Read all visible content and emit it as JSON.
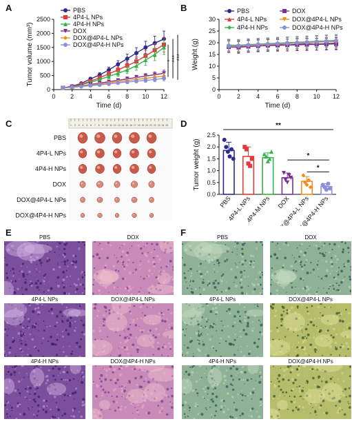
{
  "figure": {
    "panel_labels": [
      "A",
      "B",
      "C",
      "D",
      "E",
      "F"
    ]
  },
  "colors": {
    "PBS": "#2a2a8f",
    "4P4-L NPs": "#e23a3a",
    "4P4-H NPs": "#33b34a",
    "DOX": "#7a2f9a",
    "DOX@4P4-L NPs": "#f28c1b",
    "DOX@4P4-H NPs": "#8a8fd6"
  },
  "chart_data": [
    {
      "type": "line",
      "panel": "A",
      "xlabel": "Time (d)",
      "ylabel": "Tumor volume (mm³)",
      "xlim": [
        0,
        12
      ],
      "ylim": [
        0,
        2500
      ],
      "xticks": [
        "0",
        "2",
        "4",
        "6",
        "8",
        "10",
        "12"
      ],
      "yticks": [
        "0",
        "500",
        "1000",
        "1500",
        "2000",
        "2500"
      ],
      "x": [
        1,
        2,
        3,
        4,
        5,
        6,
        7,
        8,
        9,
        10,
        11,
        12
      ],
      "legend": [
        "PBS",
        "4P4-L NPs",
        "4P4-H NPs",
        "DOX",
        "DOX@4P4-L NPs",
        "DOX@4P4-H NPs"
      ],
      "significance": [
        "*",
        "***",
        "***"
      ],
      "series": [
        {
          "name": "PBS",
          "values": [
            60,
            120,
            220,
            380,
            520,
            700,
            900,
            1100,
            1300,
            1500,
            1650,
            1800
          ],
          "err": [
            20,
            30,
            40,
            60,
            80,
            100,
            130,
            160,
            190,
            220,
            250,
            280
          ]
        },
        {
          "name": "4P4-L NPs",
          "values": [
            60,
            110,
            190,
            300,
            420,
            560,
            700,
            850,
            1000,
            1200,
            1400,
            1600
          ],
          "err": [
            20,
            30,
            40,
            50,
            70,
            90,
            110,
            140,
            170,
            200,
            230,
            260
          ]
        },
        {
          "name": "4P4-H NPs",
          "values": [
            60,
            100,
            170,
            260,
            360,
            470,
            580,
            700,
            850,
            1050,
            1250,
            1500
          ],
          "err": [
            20,
            25,
            35,
            45,
            60,
            80,
            100,
            130,
            160,
            190,
            220,
            250
          ]
        },
        {
          "name": "DOX",
          "values": [
            60,
            90,
            130,
            180,
            230,
            280,
            330,
            380,
            430,
            480,
            530,
            580
          ],
          "err": [
            15,
            20,
            25,
            30,
            40,
            50,
            60,
            70,
            80,
            90,
            100,
            110
          ]
        },
        {
          "name": "DOX@4P4-L NPs",
          "values": [
            60,
            85,
            120,
            160,
            200,
            240,
            280,
            320,
            360,
            400,
            440,
            480
          ],
          "err": [
            15,
            20,
            25,
            30,
            35,
            45,
            55,
            65,
            75,
            85,
            95,
            100
          ]
        },
        {
          "name": "DOX@4P4-H NPs",
          "values": [
            60,
            80,
            110,
            140,
            170,
            200,
            240,
            270,
            300,
            330,
            360,
            400
          ],
          "err": [
            15,
            18,
            20,
            25,
            30,
            35,
            45,
            55,
            60,
            70,
            80,
            90
          ]
        }
      ]
    },
    {
      "type": "line",
      "panel": "B",
      "xlabel": "Time (d)",
      "ylabel": "Weight (g)",
      "xlim": [
        0,
        12
      ],
      "ylim": [
        0,
        30
      ],
      "xticks": [
        "0",
        "2",
        "4",
        "6",
        "8",
        "10",
        "12"
      ],
      "yticks": [
        "0",
        "5",
        "10",
        "15",
        "20",
        "25",
        "30"
      ],
      "x": [
        1,
        2,
        3,
        4,
        5,
        6,
        7,
        8,
        9,
        10,
        11,
        12
      ],
      "legend": [
        "PBS",
        "DOX",
        "4P4-L NPs",
        "DOX@4P4-L NPs",
        "4P4-H NPs",
        "DOX@4P4-H NPs"
      ],
      "series": [
        {
          "name": "PBS",
          "values": [
            18.5,
            18.3,
            18.6,
            18.8,
            19.0,
            19.2,
            19.0,
            19.3,
            19.5,
            19.4,
            19.6,
            19.8
          ],
          "err": [
            2.5,
            2.5,
            2.5,
            2.5,
            2.5,
            2.5,
            2.5,
            2.5,
            2.5,
            2.5,
            2.5,
            2.5
          ]
        },
        {
          "name": "DOX",
          "values": [
            18.2,
            18.0,
            18.4,
            18.6,
            18.8,
            18.9,
            19.0,
            19.1,
            19.2,
            19.3,
            19.4,
            19.5
          ],
          "err": [
            2.5,
            2.5,
            2.5,
            2.5,
            2.5,
            2.5,
            2.5,
            2.5,
            2.5,
            2.5,
            2.5,
            2.5
          ]
        },
        {
          "name": "4P4-L NPs",
          "values": [
            18.8,
            18.6,
            18.9,
            19.2,
            19.4,
            19.6,
            19.8,
            20.0,
            20.2,
            20.3,
            20.5,
            20.6
          ],
          "err": [
            2.5,
            2.5,
            2.5,
            2.5,
            2.5,
            2.5,
            2.5,
            2.5,
            2.5,
            2.5,
            2.5,
            2.5
          ]
        },
        {
          "name": "DOX@4P4-L NPs",
          "values": [
            18.4,
            18.5,
            18.8,
            19.0,
            19.2,
            19.4,
            19.6,
            19.8,
            20.0,
            20.2,
            20.4,
            20.5
          ],
          "err": [
            2.5,
            2.5,
            2.5,
            2.5,
            2.5,
            2.5,
            2.5,
            2.5,
            2.5,
            2.5,
            2.5,
            2.5
          ]
        },
        {
          "name": "4P4-H NPs",
          "values": [
            19.0,
            18.9,
            19.2,
            19.4,
            19.6,
            19.8,
            20.0,
            20.2,
            20.4,
            20.6,
            20.8,
            21.0
          ],
          "err": [
            2.5,
            2.5,
            2.5,
            2.5,
            2.5,
            2.5,
            2.5,
            2.5,
            2.5,
            2.5,
            2.5,
            2.5
          ]
        },
        {
          "name": "DOX@4P4-H NPs",
          "values": [
            18.6,
            18.7,
            19.0,
            19.2,
            19.4,
            19.6,
            19.8,
            20.0,
            20.2,
            20.4,
            20.6,
            20.8
          ],
          "err": [
            2.5,
            2.5,
            2.5,
            2.5,
            2.5,
            2.5,
            2.5,
            2.5,
            2.5,
            2.5,
            2.5,
            2.5
          ]
        }
      ]
    },
    {
      "type": "bar",
      "panel": "D",
      "ylabel": "Tumor weight (g)",
      "ylim": [
        0,
        2.5
      ],
      "yticks": [
        "0.0",
        "0.5",
        "1.0",
        "1.5",
        "2.0",
        "2.5"
      ],
      "categories": [
        "PBS",
        "4P4-L NPs",
        "4P4-M NPs",
        "DOX",
        "DOX@4P4-L NPs",
        "DOX@4P4-H NPs"
      ],
      "values": [
        1.85,
        1.6,
        1.55,
        0.7,
        0.55,
        0.33
      ],
      "err": [
        0.35,
        0.4,
        0.2,
        0.2,
        0.2,
        0.12
      ],
      "points": [
        [
          2.3,
          2.0,
          1.8,
          1.6,
          1.9,
          1.5
        ],
        [
          2.0,
          1.9,
          1.3,
          1.2,
          1.5
        ],
        [
          1.7,
          1.6,
          1.4,
          1.5,
          1.8
        ],
        [
          0.9,
          0.6,
          0.5,
          0.8,
          0.7
        ],
        [
          0.8,
          0.5,
          0.4,
          0.6,
          0.3
        ],
        [
          0.4,
          0.3,
          0.2,
          0.45,
          0.25
        ]
      ],
      "significance": [
        {
          "label": "**",
          "from": 0,
          "to": 5
        },
        {
          "label": "*",
          "from": 3,
          "to": 5
        },
        {
          "label": "*",
          "from": 4,
          "to": 5
        }
      ]
    }
  ],
  "panel_c": {
    "rows": [
      "PBS",
      "4P4-L NPs",
      "4P4-H NPs",
      "DOX",
      "DOX@4P4-L NPs",
      "DOX@4P4-H NPs"
    ],
    "ruler_ticks": [
      "1",
      "2",
      "3",
      "4",
      "5",
      "6",
      "7",
      "8",
      "9",
      "10",
      "11",
      "12",
      "13",
      "14",
      "15",
      "16",
      "17",
      "18",
      "19",
      "20",
      "21",
      "22",
      "23",
      "24",
      "25"
    ],
    "tumors_per_row": 5,
    "tumor_sizes": [
      1.0,
      0.85,
      0.85,
      0.6,
      0.5,
      0.4
    ]
  },
  "panel_e": {
    "labels": [
      "PBS",
      "DOX",
      "4P4-L NPs",
      "DOX@4P4-L NPs",
      "4P4-H NPs",
      "DOX@4P4-H NPs"
    ],
    "stain": "H&E"
  },
  "panel_f": {
    "labels": [
      "PBS",
      "DOX",
      "4P4-L NPs",
      "DOX@4P4-L NPs",
      "4P4-H NPs",
      "DOX@4P4-H NPs"
    ]
  }
}
